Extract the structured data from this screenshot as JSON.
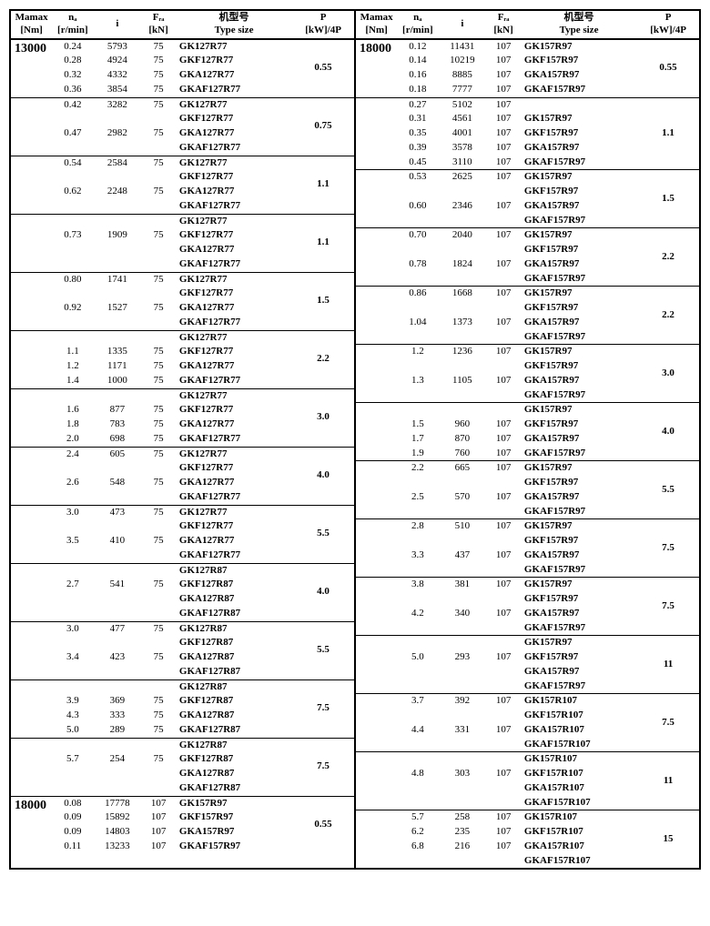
{
  "headers": {
    "mamax": "Mamax",
    "mamax_unit": "[Nm]",
    "na": "nₐ",
    "na_unit": "[r/min]",
    "i": "i",
    "fra": "Fᵣₐ",
    "fra_unit": "[kN]",
    "type_size_zh": "机型号",
    "type_size_en": "Type size",
    "p": "P",
    "p_unit": "[kW]/4P"
  },
  "left": [
    {
      "mamax": "13000",
      "sep": true,
      "rows": [
        {
          "na": "0.24",
          "i": "5793",
          "fra": "75",
          "type": "GK127R77"
        },
        {
          "na": "0.28",
          "i": "4924",
          "fra": "75",
          "type": "GKF127R77"
        },
        {
          "na": "0.32",
          "i": "4332",
          "fra": "75",
          "type": "GKA127R77"
        },
        {
          "na": "0.36",
          "i": "3854",
          "fra": "75",
          "type": "GKAF127R77"
        }
      ],
      "p": "0.55"
    },
    {
      "sep": true,
      "rows": [
        {
          "na": "0.42",
          "i": "3282",
          "fra": "75",
          "type": "GK127R77"
        },
        {
          "type": "GKF127R77"
        },
        {
          "na": "0.47",
          "i": "2982",
          "fra": "75",
          "type": "GKA127R77"
        },
        {
          "type": "GKAF127R77"
        }
      ],
      "p": "0.75"
    },
    {
      "sep": true,
      "rows": [
        {
          "na": "0.54",
          "i": "2584",
          "fra": "75",
          "type": "GK127R77"
        },
        {
          "type": "GKF127R77"
        },
        {
          "na": "0.62",
          "i": "2248",
          "fra": "75",
          "type": "GKA127R77"
        },
        {
          "type": "GKAF127R77"
        }
      ],
      "p": "1.1"
    },
    {
      "sep": true,
      "rows": [
        {
          "type": "GK127R77"
        },
        {
          "na": "0.73",
          "i": "1909",
          "fra": "75",
          "type": "GKF127R77"
        },
        {
          "type": "GKA127R77"
        },
        {
          "type": "GKAF127R77"
        }
      ],
      "p": "1.1"
    },
    {
      "sep": true,
      "rows": [
        {
          "na": "0.80",
          "i": "1741",
          "fra": "75",
          "type": "GK127R77"
        },
        {
          "type": "GKF127R77"
        },
        {
          "na": "0.92",
          "i": "1527",
          "fra": "75",
          "type": "GKA127R77"
        },
        {
          "type": "GKAF127R77"
        }
      ],
      "p": "1.5"
    },
    {
      "sep": true,
      "rows": [
        {
          "type": "GK127R77"
        },
        {
          "na": "1.1",
          "i": "1335",
          "fra": "75",
          "type": "GKF127R77"
        },
        {
          "na": "1.2",
          "i": "1171",
          "fra": "75",
          "type": "GKA127R77"
        },
        {
          "na": "1.4",
          "i": "1000",
          "fra": "75",
          "type": "GKAF127R77"
        }
      ],
      "p": "2.2"
    },
    {
      "sep": true,
      "rows": [
        {
          "type": "GK127R77"
        },
        {
          "na": "1.6",
          "i": "877",
          "fra": "75",
          "type": "GKF127R77"
        },
        {
          "na": "1.8",
          "i": "783",
          "fra": "75",
          "type": "GKA127R77"
        },
        {
          "na": "2.0",
          "i": "698",
          "fra": "75",
          "type": "GKAF127R77"
        }
      ],
      "p": "3.0"
    },
    {
      "sep": true,
      "rows": [
        {
          "na": "2.4",
          "i": "605",
          "fra": "75",
          "type": "GK127R77"
        },
        {
          "type": "GKF127R77"
        },
        {
          "na": "2.6",
          "i": "548",
          "fra": "75",
          "type": "GKA127R77"
        },
        {
          "type": "GKAF127R77"
        }
      ],
      "p": "4.0"
    },
    {
      "sep": true,
      "rows": [
        {
          "na": "3.0",
          "i": "473",
          "fra": "75",
          "type": "GK127R77"
        },
        {
          "type": "GKF127R77"
        },
        {
          "na": "3.5",
          "i": "410",
          "fra": "75",
          "type": "GKA127R77"
        },
        {
          "type": "GKAF127R77"
        }
      ],
      "p": "5.5"
    },
    {
      "sep": true,
      "rows": [
        {
          "type": "GK127R87"
        },
        {
          "na": "2.7",
          "i": "541",
          "fra": "75",
          "type": "GKF127R87"
        },
        {
          "type": "GKA127R87"
        },
        {
          "type": "GKAF127R87"
        }
      ],
      "p": "4.0"
    },
    {
      "sep": true,
      "rows": [
        {
          "na": "3.0",
          "i": "477",
          "fra": "75",
          "type": "GK127R87"
        },
        {
          "type": "GKF127R87"
        },
        {
          "na": "3.4",
          "i": "423",
          "fra": "75",
          "type": "GKA127R87"
        },
        {
          "type": "GKAF127R87"
        }
      ],
      "p": "5.5"
    },
    {
      "sep": true,
      "rows": [
        {
          "type": "GK127R87"
        },
        {
          "na": "3.9",
          "i": "369",
          "fra": "75",
          "type": "GKF127R87"
        },
        {
          "na": "4.3",
          "i": "333",
          "fra": "75",
          "type": "GKA127R87"
        },
        {
          "na": "5.0",
          "i": "289",
          "fra": "75",
          "type": "GKAF127R87"
        }
      ],
      "p": "7.5"
    },
    {
      "sep": true,
      "rows": [
        {
          "type": "GK127R87"
        },
        {
          "na": "5.7",
          "i": "254",
          "fra": "75",
          "type": "GKF127R87"
        },
        {
          "type": "GKA127R87"
        },
        {
          "type": "GKAF127R87"
        }
      ],
      "p": "7.5"
    },
    {
      "mamax": "18000",
      "sep": true,
      "rows": [
        {
          "na": "0.08",
          "i": "17778",
          "fra": "107",
          "type": "GK157R97"
        },
        {
          "na": "0.09",
          "i": "15892",
          "fra": "107",
          "type": "GKF157R97"
        },
        {
          "na": "0.09",
          "i": "14803",
          "fra": "107",
          "type": "GKA157R97"
        },
        {
          "na": "0.11",
          "i": "13233",
          "fra": "107",
          "type": "GKAF157R97"
        }
      ],
      "p": "0.55"
    }
  ],
  "right": [
    {
      "mamax": "18000",
      "sep": true,
      "rows": [
        {
          "na": "0.12",
          "i": "11431",
          "fra": "107",
          "type": "GK157R97"
        },
        {
          "na": "0.14",
          "i": "10219",
          "fra": "107",
          "type": "GKF157R97"
        },
        {
          "na": "0.16",
          "i": "8885",
          "fra": "107",
          "type": "GKA157R97"
        },
        {
          "na": "0.18",
          "i": "7777",
          "fra": "107",
          "type": "GKAF157R97"
        }
      ],
      "p": "0.55"
    },
    {
      "sep": true,
      "rows": [
        {
          "na": "0.27",
          "i": "5102",
          "fra": "107",
          "type": ""
        },
        {
          "na": "0.31",
          "i": "4561",
          "fra": "107",
          "type": "GK157R97"
        },
        {
          "na": "0.35",
          "i": "4001",
          "fra": "107",
          "type": "GKF157R97"
        },
        {
          "na": "0.39",
          "i": "3578",
          "fra": "107",
          "type": "GKA157R97"
        },
        {
          "na": "0.45",
          "i": "3110",
          "fra": "107",
          "type": "GKAF157R97"
        }
      ],
      "p": "1.1"
    },
    {
      "sep": true,
      "rows": [
        {
          "na": "0.53",
          "i": "2625",
          "fra": "107",
          "type": "GK157R97"
        },
        {
          "type": "GKF157R97"
        },
        {
          "na": "0.60",
          "i": "2346",
          "fra": "107",
          "type": "GKA157R97"
        },
        {
          "type": "GKAF157R97"
        }
      ],
      "p": "1.5"
    },
    {
      "sep": true,
      "rows": [
        {
          "na": "0.70",
          "i": "2040",
          "fra": "107",
          "type": "GK157R97"
        },
        {
          "type": "GKF157R97"
        },
        {
          "na": "0.78",
          "i": "1824",
          "fra": "107",
          "type": "GKA157R97"
        },
        {
          "type": "GKAF157R97"
        }
      ],
      "p": "2.2"
    },
    {
      "sep": true,
      "rows": [
        {
          "na": "0.86",
          "i": "1668",
          "fra": "107",
          "type": "GK157R97"
        },
        {
          "type": "GKF157R97"
        },
        {
          "na": "1.04",
          "i": "1373",
          "fra": "107",
          "type": "GKA157R97"
        },
        {
          "type": "GKAF157R97"
        }
      ],
      "p": "2.2"
    },
    {
      "sep": true,
      "rows": [
        {
          "na": "1.2",
          "i": "1236",
          "fra": "107",
          "type": "GK157R97"
        },
        {
          "type": "GKF157R97"
        },
        {
          "na": "1.3",
          "i": "1105",
          "fra": "107",
          "type": "GKA157R97"
        },
        {
          "type": "GKAF157R97"
        }
      ],
      "p": "3.0"
    },
    {
      "sep": true,
      "rows": [
        {
          "type": "GK157R97"
        },
        {
          "na": "1.5",
          "i": "960",
          "fra": "107",
          "type": "GKF157R97"
        },
        {
          "na": "1.7",
          "i": "870",
          "fra": "107",
          "type": "GKA157R97"
        },
        {
          "na": "1.9",
          "i": "760",
          "fra": "107",
          "type": "GKAF157R97"
        }
      ],
      "p": "4.0"
    },
    {
      "sep": true,
      "rows": [
        {
          "na": "2.2",
          "i": "665",
          "fra": "107",
          "type": "GK157R97"
        },
        {
          "type": "GKF157R97"
        },
        {
          "na": "2.5",
          "i": "570",
          "fra": "107",
          "type": "GKA157R97"
        },
        {
          "type": "GKAF157R97"
        }
      ],
      "p": "5.5"
    },
    {
      "sep": true,
      "rows": [
        {
          "na": "2.8",
          "i": "510",
          "fra": "107",
          "type": "GK157R97"
        },
        {
          "type": "GKF157R97"
        },
        {
          "na": "3.3",
          "i": "437",
          "fra": "107",
          "type": "GKA157R97"
        },
        {
          "type": "GKAF157R97"
        }
      ],
      "p": "7.5"
    },
    {
      "sep": true,
      "rows": [
        {
          "na": "3.8",
          "i": "381",
          "fra": "107",
          "type": "GK157R97"
        },
        {
          "type": "GKF157R97"
        },
        {
          "na": "4.2",
          "i": "340",
          "fra": "107",
          "type": "GKA157R97"
        },
        {
          "type": "GKAF157R97"
        }
      ],
      "p": "7.5"
    },
    {
      "sep": true,
      "rows": [
        {
          "type": "GK157R97"
        },
        {
          "na": "5.0",
          "i": "293",
          "fra": "107",
          "type": "GKF157R97"
        },
        {
          "type": "GKA157R97"
        },
        {
          "type": "GKAF157R97"
        }
      ],
      "p": "11"
    },
    {
      "sep": true,
      "rows": [
        {
          "na": "3.7",
          "i": "392",
          "fra": "107",
          "type": "GK157R107"
        },
        {
          "type": "GKF157R107"
        },
        {
          "na": "4.4",
          "i": "331",
          "fra": "107",
          "type": "GKA157R107"
        },
        {
          "type": "GKAF157R107"
        }
      ],
      "p": "7.5"
    },
    {
      "sep": true,
      "rows": [
        {
          "type": "GK157R107"
        },
        {
          "na": "4.8",
          "i": "303",
          "fra": "107",
          "type": "GKF157R107"
        },
        {
          "type": "GKA157R107"
        },
        {
          "type": "GKAF157R107"
        }
      ],
      "p": "11"
    },
    {
      "sep": true,
      "rows": [
        {
          "na": "5.7",
          "i": "258",
          "fra": "107",
          "type": "GK157R107"
        },
        {
          "na": "6.2",
          "i": "235",
          "fra": "107",
          "type": "GKF157R107"
        },
        {
          "na": "6.8",
          "i": "216",
          "fra": "107",
          "type": "GKA157R107"
        },
        {
          "type": "GKAF157R107"
        }
      ],
      "p": "15"
    }
  ]
}
